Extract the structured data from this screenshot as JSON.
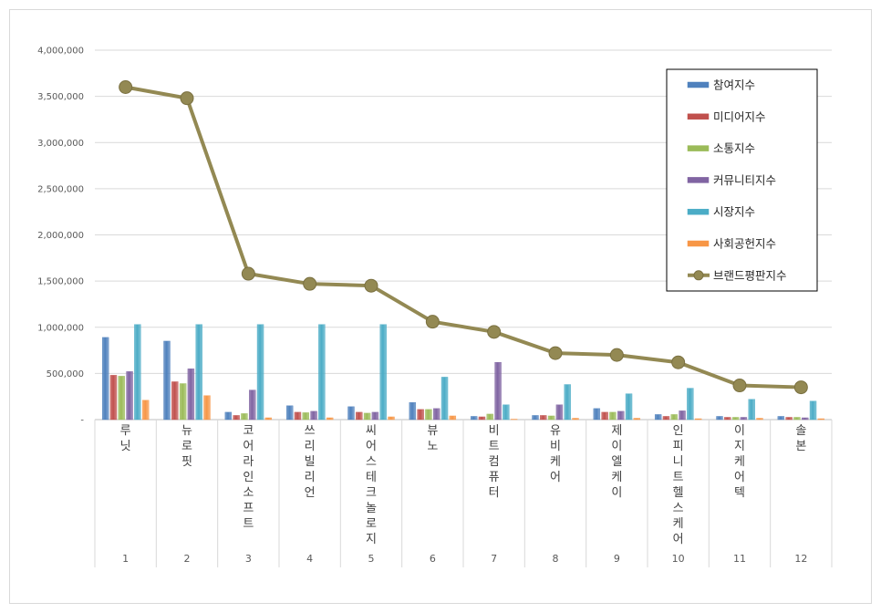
{
  "chart_data": {
    "type": "bar",
    "categories": [
      "루닛",
      "뉴로핏",
      "코어라인소프트",
      "쓰리빌리언",
      "씨어스테크놀로지",
      "뷰노",
      "비트컴퓨터",
      "유비케어",
      "제이엘케이",
      "인피니트헬스케어",
      "이지케어텍",
      "솔본"
    ],
    "category_index": [
      "1",
      "2",
      "3",
      "4",
      "5",
      "6",
      "7",
      "8",
      "9",
      "10",
      "11",
      "12"
    ],
    "ylim": [
      0,
      4000000
    ],
    "yticks": [
      0,
      500000,
      1000000,
      1500000,
      2000000,
      2500000,
      3000000,
      3500000,
      4000000
    ],
    "ytick_labels": [
      "-",
      "500,000",
      "1,000,000",
      "1,500,000",
      "2,000,000",
      "2,500,000",
      "3,000,000",
      "3,500,000",
      "4,000,000"
    ],
    "grid": true,
    "legend_position": "top-right",
    "series": [
      {
        "name": "참여지수",
        "color": "#4f81bd",
        "values": [
          890000,
          850000,
          80000,
          150000,
          140000,
          185000,
          35000,
          45000,
          120000,
          55000,
          35000,
          35000
        ]
      },
      {
        "name": "미디어지수",
        "color": "#c0504d",
        "values": [
          480000,
          410000,
          45000,
          80000,
          80000,
          110000,
          30000,
          45000,
          80000,
          35000,
          25000,
          25000
        ]
      },
      {
        "name": "소통지수",
        "color": "#9bbb59",
        "values": [
          470000,
          390000,
          65000,
          75000,
          70000,
          110000,
          60000,
          40000,
          80000,
          55000,
          25000,
          25000
        ]
      },
      {
        "name": "커뮤니티지수",
        "color": "#8064a2",
        "values": [
          520000,
          550000,
          320000,
          90000,
          80000,
          120000,
          620000,
          160000,
          90000,
          95000,
          25000,
          20000
        ]
      },
      {
        "name": "시장지수",
        "color": "#4bacc6",
        "values": [
          1030000,
          1030000,
          1030000,
          1030000,
          1030000,
          460000,
          160000,
          380000,
          280000,
          340000,
          220000,
          200000
        ]
      },
      {
        "name": "사회공헌지수",
        "color": "#f79646",
        "values": [
          210000,
          260000,
          20000,
          20000,
          30000,
          40000,
          5000,
          15000,
          15000,
          10000,
          15000,
          10000
        ]
      }
    ],
    "line_series": {
      "name": "브랜드평판지수",
      "color": "#938953",
      "values": [
        3600000,
        3480000,
        1580000,
        1470000,
        1450000,
        1060000,
        950000,
        720000,
        700000,
        620000,
        370000,
        350000
      ]
    }
  }
}
